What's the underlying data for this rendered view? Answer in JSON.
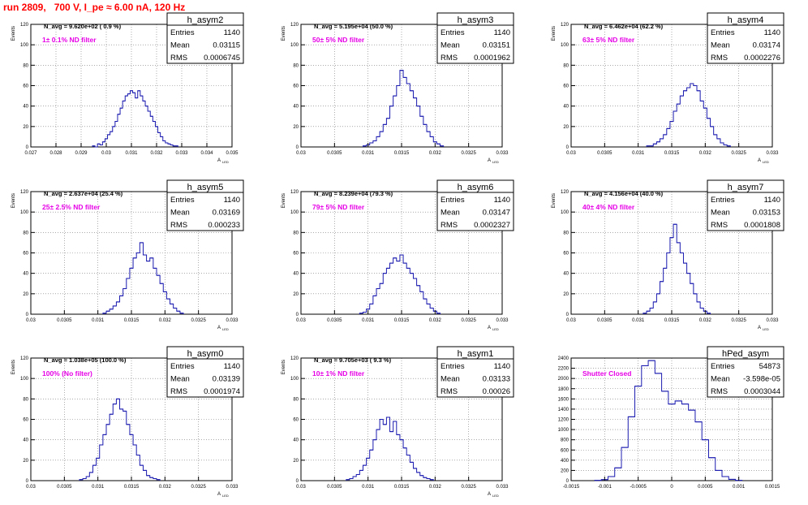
{
  "page": {
    "run_title": "run 2809,   700 V, I_pe ≈ 6.00 nA, 120 Hz"
  },
  "colors": {
    "histogram": "#1b1bb0",
    "filter_text": "#e600e6",
    "title_red": "#ff0000",
    "grid": "#777777",
    "frame": "#000000"
  },
  "chart_data": [
    {
      "type": "bar",
      "histogram": "h_asym2",
      "title": "",
      "xlabel": "A_LED",
      "ylabel": "Events",
      "xlim": [
        0.027,
        0.035
      ],
      "ylim": [
        0,
        120
      ],
      "xticks": [
        "0.027",
        "0.028",
        "0.029",
        "0.03",
        "0.031",
        "0.032",
        "0.033",
        "0.034",
        "0.035"
      ],
      "yticks": [
        "0",
        "20",
        "40",
        "60",
        "80",
        "100",
        "120"
      ],
      "grid": true,
      "n_avg_text": "N_avg = 9.620e+02 ( 0.9 %)",
      "filter_text": "1± 0.1% ND filter",
      "stats": {
        "name": "h_asym2",
        "entries": "1140",
        "mean": "0.03115",
        "rms": "0.0006745"
      },
      "x": [
        0.0295,
        0.0296,
        0.0297,
        0.0298,
        0.0299,
        0.03,
        0.0301,
        0.0302,
        0.0303,
        0.0304,
        0.0305,
        0.0306,
        0.0307,
        0.0308,
        0.0309,
        0.031,
        0.0311,
        0.0312,
        0.0313,
        0.0314,
        0.0315,
        0.0316,
        0.0317,
        0.0318,
        0.0319,
        0.032,
        0.0321,
        0.0322,
        0.0323,
        0.0324,
        0.0325,
        0.0326,
        0.0327,
        0.0328
      ],
      "values": [
        1,
        0,
        3,
        2,
        5,
        8,
        12,
        15,
        20,
        25,
        32,
        38,
        45,
        50,
        52,
        55,
        53,
        48,
        55,
        50,
        45,
        40,
        35,
        30,
        25,
        20,
        14,
        10,
        6,
        4,
        3,
        2,
        1,
        1
      ]
    },
    {
      "type": "bar",
      "histogram": "h_asym3",
      "title": "",
      "xlabel": "A_LED",
      "ylabel": "Events",
      "xlim": [
        0.03,
        0.033
      ],
      "ylim": [
        0,
        120
      ],
      "xticks": [
        "0.03",
        "0.0305",
        "0.031",
        "0.0315",
        "0.032",
        "0.0325",
        "0.033"
      ],
      "yticks": [
        "0",
        "20",
        "40",
        "60",
        "80",
        "100",
        "120"
      ],
      "grid": true,
      "n_avg_text": "N_avg = 5.195e+04 (50.0 %)",
      "filter_text": "50± 5% ND filter",
      "stats": {
        "name": "h_asym3",
        "entries": "1140",
        "mean": "0.03151",
        "rms": "0.0001962"
      },
      "x": [
        0.03095,
        0.031,
        0.03105,
        0.0311,
        0.03115,
        0.0312,
        0.03125,
        0.0313,
        0.03135,
        0.0314,
        0.03145,
        0.0315,
        0.03155,
        0.0316,
        0.03165,
        0.0317,
        0.03175,
        0.0318,
        0.03185,
        0.0319,
        0.03195,
        0.032,
        0.03205,
        0.0321
      ],
      "values": [
        1,
        2,
        4,
        6,
        10,
        15,
        22,
        28,
        40,
        50,
        60,
        75,
        68,
        62,
        55,
        48,
        40,
        30,
        22,
        15,
        10,
        5,
        3,
        1
      ]
    },
    {
      "type": "bar",
      "histogram": "h_asym4",
      "title": "",
      "xlabel": "A_LED",
      "ylabel": "Events",
      "xlim": [
        0.03,
        0.033
      ],
      "ylim": [
        0,
        120
      ],
      "xticks": [
        "0.03",
        "0.0305",
        "0.031",
        "0.0315",
        "0.032",
        "0.0325",
        "0.033"
      ],
      "yticks": [
        "0",
        "20",
        "40",
        "60",
        "80",
        "100",
        "120"
      ],
      "grid": true,
      "n_avg_text": "N_avg = 6.462e+04 (62.2 %)",
      "filter_text": "63± 5% ND filter",
      "stats": {
        "name": "h_asym4",
        "entries": "1140",
        "mean": "0.03174",
        "rms": "0.0002276"
      },
      "x": [
        0.03115,
        0.0312,
        0.03125,
        0.0313,
        0.03135,
        0.0314,
        0.03145,
        0.0315,
        0.03155,
        0.0316,
        0.03165,
        0.0317,
        0.03175,
        0.0318,
        0.03185,
        0.0319,
        0.03195,
        0.032,
        0.03205,
        0.0321,
        0.03215,
        0.0322,
        0.03225,
        0.0323,
        0.03235
      ],
      "values": [
        1,
        1,
        3,
        5,
        8,
        12,
        18,
        25,
        35,
        42,
        50,
        55,
        58,
        62,
        60,
        55,
        45,
        38,
        28,
        20,
        12,
        8,
        4,
        2,
        1
      ]
    },
    {
      "type": "bar",
      "histogram": "h_asym5",
      "title": "",
      "xlabel": "A_LED",
      "ylabel": "Events",
      "xlim": [
        0.03,
        0.033
      ],
      "ylim": [
        0,
        120
      ],
      "xticks": [
        "0.03",
        "0.0305",
        "0.031",
        "0.0315",
        "0.032",
        "0.0325",
        "0.033"
      ],
      "yticks": [
        "0",
        "20",
        "40",
        "60",
        "80",
        "100",
        "120"
      ],
      "grid": true,
      "n_avg_text": "N_avg = 2.637e+04 (25.4 %)",
      "filter_text": "25± 2.5% ND filter",
      "stats": {
        "name": "h_asym5",
        "entries": "1140",
        "mean": "0.03169",
        "rms": "0.000233"
      },
      "x": [
        0.0311,
        0.03115,
        0.0312,
        0.03125,
        0.0313,
        0.03135,
        0.0314,
        0.03145,
        0.0315,
        0.03155,
        0.0316,
        0.03165,
        0.0317,
        0.03175,
        0.0318,
        0.03185,
        0.0319,
        0.03195,
        0.032,
        0.03205,
        0.0321,
        0.03215,
        0.0322,
        0.03225
      ],
      "values": [
        1,
        3,
        5,
        8,
        12,
        18,
        25,
        35,
        45,
        55,
        60,
        70,
        58,
        52,
        55,
        45,
        38,
        30,
        22,
        15,
        10,
        6,
        3,
        1
      ]
    },
    {
      "type": "bar",
      "histogram": "h_asym6",
      "title": "",
      "xlabel": "A_LED",
      "ylabel": "Events",
      "xlim": [
        0.03,
        0.033
      ],
      "ylim": [
        0,
        120
      ],
      "xticks": [
        "0.03",
        "0.0305",
        "0.031",
        "0.0315",
        "0.032",
        "0.0325",
        "0.033"
      ],
      "yticks": [
        "0",
        "20",
        "40",
        "60",
        "80",
        "100",
        "120"
      ],
      "grid": true,
      "n_avg_text": "N_avg = 8.239e+04 (79.3 %)",
      "filter_text": "79± 5% ND filter",
      "stats": {
        "name": "h_asym6",
        "entries": "1140",
        "mean": "0.03147",
        "rms": "0.0002327"
      },
      "x": [
        0.0309,
        0.03095,
        0.031,
        0.03105,
        0.0311,
        0.03115,
        0.0312,
        0.03125,
        0.0313,
        0.03135,
        0.0314,
        0.03145,
        0.0315,
        0.03155,
        0.0316,
        0.03165,
        0.0317,
        0.03175,
        0.0318,
        0.03185,
        0.0319,
        0.03195,
        0.032,
        0.03205
      ],
      "values": [
        1,
        2,
        5,
        10,
        18,
        25,
        30,
        40,
        45,
        50,
        55,
        52,
        58,
        50,
        45,
        40,
        35,
        28,
        22,
        15,
        10,
        6,
        3,
        1
      ]
    },
    {
      "type": "bar",
      "histogram": "h_asym7",
      "title": "",
      "xlabel": "A_LED",
      "ylabel": "Events",
      "xlim": [
        0.03,
        0.033
      ],
      "ylim": [
        0,
        120
      ],
      "xticks": [
        "0.03",
        "0.0305",
        "0.031",
        "0.0315",
        "0.032",
        "0.0325",
        "0.033"
      ],
      "yticks": [
        "0",
        "20",
        "40",
        "60",
        "80",
        "100",
        "120"
      ],
      "grid": true,
      "n_avg_text": "N_avg = 4.156e+04 (40.0 %)",
      "filter_text": "40± 4% ND filter",
      "stats": {
        "name": "h_asym7",
        "entries": "1140",
        "mean": "0.03153",
        "rms": "0.0001808"
      },
      "x": [
        0.0311,
        0.03115,
        0.0312,
        0.03125,
        0.0313,
        0.03135,
        0.0314,
        0.03145,
        0.0315,
        0.03155,
        0.0316,
        0.03165,
        0.0317,
        0.03175,
        0.0318,
        0.03185,
        0.0319,
        0.03195,
        0.032,
        0.03205
      ],
      "values": [
        1,
        3,
        6,
        12,
        20,
        32,
        45,
        60,
        75,
        88,
        70,
        60,
        50,
        40,
        30,
        20,
        12,
        6,
        3,
        1
      ]
    },
    {
      "type": "bar",
      "histogram": "h_asym0",
      "title": "",
      "xlabel": "A_LED",
      "ylabel": "Events",
      "xlim": [
        0.03,
        0.033
      ],
      "ylim": [
        0,
        120
      ],
      "xticks": [
        "0.03",
        "0.0305",
        "0.031",
        "0.0315",
        "0.032",
        "0.0325",
        "0.033"
      ],
      "yticks": [
        "0",
        "20",
        "40",
        "60",
        "80",
        "100",
        "120"
      ],
      "grid": true,
      "n_avg_text": "N_avg = 1.038e+05 (100.0 %)",
      "filter_text": "100% (No filter)",
      "stats": {
        "name": "h_asym0",
        "entries": "1140",
        "mean": "0.03139",
        "rms": "0.0001974"
      },
      "x": [
        0.03075,
        0.0308,
        0.03085,
        0.0309,
        0.03095,
        0.031,
        0.03105,
        0.0311,
        0.03115,
        0.0312,
        0.03125,
        0.0313,
        0.03135,
        0.0314,
        0.03145,
        0.0315,
        0.03155,
        0.0316,
        0.03165,
        0.0317,
        0.03175,
        0.0318,
        0.03185,
        0.0319
      ],
      "values": [
        1,
        2,
        4,
        8,
        15,
        22,
        35,
        45,
        55,
        65,
        75,
        80,
        70,
        68,
        55,
        45,
        35,
        25,
        15,
        10,
        5,
        3,
        2,
        1
      ]
    },
    {
      "type": "bar",
      "histogram": "h_asym1",
      "title": "",
      "xlabel": "A_LED",
      "ylabel": "Events",
      "xlim": [
        0.03,
        0.033
      ],
      "ylim": [
        0,
        120
      ],
      "xticks": [
        "0.03",
        "0.0305",
        "0.031",
        "0.0315",
        "0.032",
        "0.0325",
        "0.033"
      ],
      "yticks": [
        "0",
        "20",
        "40",
        "60",
        "80",
        "100",
        "120"
      ],
      "grid": true,
      "n_avg_text": "N_avg = 9.705e+03 ( 9.3 %)",
      "filter_text": "10± 1% ND filter",
      "stats": {
        "name": "h_asym1",
        "entries": "1140",
        "mean": "0.03133",
        "rms": "0.00026"
      },
      "x": [
        0.0307,
        0.03075,
        0.0308,
        0.03085,
        0.0309,
        0.03095,
        0.031,
        0.03105,
        0.0311,
        0.03115,
        0.0312,
        0.03125,
        0.0313,
        0.03135,
        0.0314,
        0.03145,
        0.0315,
        0.03155,
        0.0316,
        0.03165,
        0.0317,
        0.03175,
        0.0318,
        0.03185,
        0.0319,
        0.03195
      ],
      "values": [
        1,
        2,
        4,
        6,
        10,
        15,
        22,
        30,
        40,
        50,
        60,
        55,
        62,
        48,
        58,
        45,
        40,
        32,
        25,
        18,
        12,
        8,
        5,
        3,
        2,
        1
      ]
    },
    {
      "type": "line",
      "histogram": "hPed_asym",
      "title": "",
      "xlabel": "",
      "ylabel": "",
      "xlim": [
        -0.0015,
        0.0015
      ],
      "ylim": [
        0,
        2400
      ],
      "xticks": [
        "-0.0015",
        "-0.001",
        "-0.0005",
        "0",
        "0.0005",
        "0.001",
        "0.0015"
      ],
      "yticks": [
        "0",
        "200",
        "400",
        "600",
        "800",
        "1000",
        "1200",
        "1400",
        "1600",
        "1800",
        "2000",
        "2200",
        "2400"
      ],
      "grid": true,
      "n_avg_text": "",
      "filter_text": "Shutter Closed",
      "stats": {
        "name": "hPed_asym",
        "entries": "54873",
        "mean": "-3.598e-05",
        "rms": "0.0003044"
      },
      "x": [
        -0.0011,
        -0.001,
        -0.0009,
        -0.0008,
        -0.0007,
        -0.0006,
        -0.0005,
        -0.0004,
        -0.0003,
        -0.0002,
        -0.0001,
        0,
        0.0001,
        0.0002,
        0.0003,
        0.0004,
        0.0005,
        0.0006,
        0.0007,
        0.0008,
        0.0009,
        0.001
      ],
      "values": [
        5,
        20,
        80,
        250,
        650,
        1250,
        1850,
        2250,
        2350,
        2100,
        1750,
        1500,
        1560,
        1500,
        1380,
        1150,
        800,
        450,
        200,
        80,
        25,
        5
      ]
    }
  ]
}
